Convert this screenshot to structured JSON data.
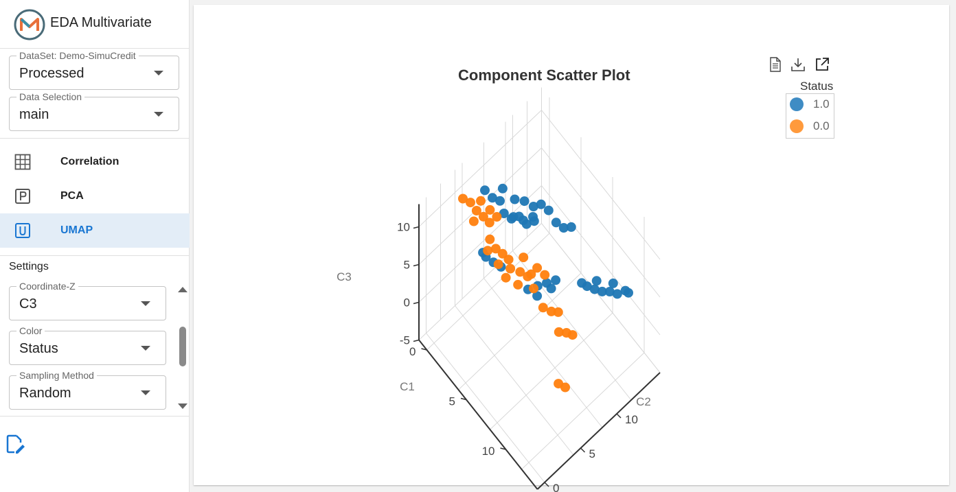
{
  "app": {
    "title": "EDA Multivariate"
  },
  "dataset_select": {
    "label": "DataSet: Demo-SimuCredit",
    "value": "Processed"
  },
  "data_selection": {
    "label": "Data Selection",
    "value": "main"
  },
  "nav": [
    {
      "label": "Correlation",
      "icon": "grid-icon"
    },
    {
      "label": "PCA",
      "icon": "p-box-icon"
    },
    {
      "label": "UMAP",
      "icon": "u-box-icon",
      "active": true
    }
  ],
  "settings": {
    "title": "Settings",
    "fields": [
      {
        "label": "Coordinate-Z",
        "value": "C3"
      },
      {
        "label": "Color",
        "value": "Status"
      },
      {
        "label": "Sampling Method",
        "value": "Random"
      }
    ]
  },
  "toolbar": {
    "icons": [
      "document-icon",
      "download-icon",
      "open-external-icon"
    ]
  },
  "colors": {
    "accent": "#1976d2",
    "status_1": "#1f77b4",
    "status_0": "#ff7f0e"
  },
  "chart_data": {
    "type": "scatter",
    "dimensions": 3,
    "title": "Component Scatter Plot",
    "axes": {
      "x": {
        "label": "C1",
        "ticks": [
          "0",
          "5",
          "10"
        ]
      },
      "y": {
        "label": "C2",
        "ticks": [
          "0",
          "5",
          "10"
        ]
      },
      "z": {
        "label": "C3",
        "ticks": [
          "-5",
          "0",
          "5",
          "10"
        ]
      }
    },
    "legend": {
      "title": "Status",
      "placement": "top-right"
    },
    "series": [
      {
        "name": "1.0",
        "color": "#1f77b4",
        "points": [
          [
            2.0,
            7.5,
            8.0
          ],
          [
            2.5,
            8.0,
            7.5
          ],
          [
            3.0,
            8.5,
            8.0
          ],
          [
            3.5,
            9.0,
            7.2
          ],
          [
            4.0,
            9.5,
            7.8
          ],
          [
            2.0,
            9.0,
            8.5
          ],
          [
            2.5,
            9.8,
            8.2
          ],
          [
            3.0,
            10.5,
            7.5
          ],
          [
            3.5,
            11.0,
            8.0
          ],
          [
            4.0,
            11.5,
            7.4
          ],
          [
            2.2,
            8.6,
            6.8
          ],
          [
            2.8,
            9.3,
            6.5
          ],
          [
            3.3,
            10.1,
            6.9
          ],
          [
            1.0,
            7.0,
            9.2
          ],
          [
            1.5,
            7.5,
            9.0
          ],
          [
            0.5,
            6.5,
            10.0
          ],
          [
            1.2,
            8.2,
            9.6
          ],
          [
            4.5,
            12.0,
            6.0
          ],
          [
            5.0,
            12.5,
            5.5
          ],
          [
            5.5,
            13.0,
            5.8
          ],
          [
            5.5,
            7.0,
            3.0
          ],
          [
            6.0,
            7.8,
            3.4
          ],
          [
            6.5,
            8.5,
            3.8
          ],
          [
            7.0,
            9.2,
            4.2
          ],
          [
            6.2,
            7.5,
            2.6
          ],
          [
            6.8,
            8.8,
            3.2
          ],
          [
            2.0,
            5.0,
            4.5
          ],
          [
            2.5,
            5.5,
            4.0
          ],
          [
            3.0,
            6.0,
            3.6
          ],
          [
            1.8,
            4.8,
            5.0
          ],
          [
            7.5,
            13.0,
            0.6
          ],
          [
            8.0,
            13.5,
            0.4
          ],
          [
            8.5,
            14.0,
            0.3
          ],
          [
            9.0,
            14.5,
            0.5
          ],
          [
            9.5,
            15.0,
            0.4
          ],
          [
            7.8,
            14.0,
            0.8
          ],
          [
            8.8,
            15.2,
            0.7
          ],
          [
            9.8,
            15.8,
            0.5
          ],
          [
            7.2,
            12.6,
            1.0
          ],
          [
            10.0,
            16.0,
            0.3
          ]
        ]
      },
      {
        "name": "0.0",
        "color": "#ff7f0e",
        "points": [
          [
            0.0,
            4.0,
            10.5
          ],
          [
            0.5,
            4.5,
            10.2
          ],
          [
            1.0,
            4.8,
            9.5
          ],
          [
            1.5,
            5.2,
            9.0
          ],
          [
            2.0,
            5.5,
            8.6
          ],
          [
            0.8,
            5.6,
            9.8
          ],
          [
            1.6,
            6.0,
            9.3
          ],
          [
            2.2,
            6.3,
            8.9
          ],
          [
            1.2,
            4.2,
            8.9
          ],
          [
            2.5,
            5.0,
            7.5
          ],
          [
            2.8,
            5.5,
            6.2
          ],
          [
            3.2,
            6.0,
            5.6
          ],
          [
            3.6,
            6.4,
            5.0
          ],
          [
            2.6,
            4.6,
            6.5
          ],
          [
            3.4,
            5.2,
            5.2
          ],
          [
            4.0,
            6.2,
            4.5
          ],
          [
            4.5,
            7.0,
            4.0
          ],
          [
            5.0,
            7.5,
            3.6
          ],
          [
            4.2,
            7.8,
            4.8
          ],
          [
            5.2,
            8.6,
            4.0
          ],
          [
            5.8,
            9.0,
            3.5
          ],
          [
            4.8,
            8.2,
            3.0
          ],
          [
            3.8,
            5.8,
            3.4
          ],
          [
            4.6,
            6.6,
            2.8
          ],
          [
            5.5,
            7.8,
            2.4
          ],
          [
            6.5,
            8.0,
            1.0
          ],
          [
            7.0,
            8.6,
            0.6
          ],
          [
            7.5,
            9.0,
            0.8
          ],
          [
            8.5,
            8.0,
            0.4
          ],
          [
            9.0,
            8.5,
            0.5
          ],
          [
            9.5,
            8.8,
            0.6
          ],
          [
            11.0,
            5.2,
            -0.6
          ],
          [
            11.5,
            5.6,
            -0.8
          ]
        ]
      }
    ]
  }
}
